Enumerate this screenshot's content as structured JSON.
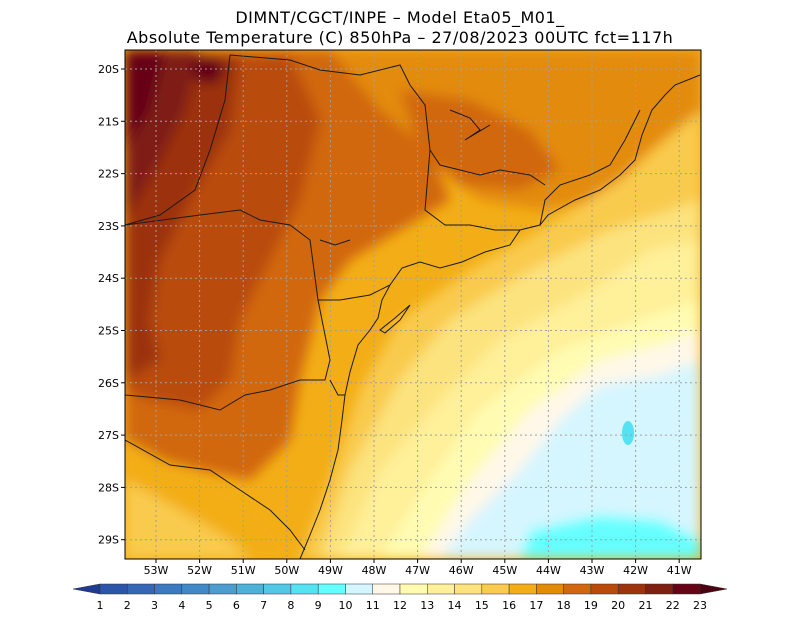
{
  "header": {
    "line1": "DIMNT/CGCT/INPE –  Model Eta05_M01_",
    "line2": "Absolute Temperature (C) 850hPa –  27/08/2023 00UTC fct=117h"
  },
  "axes": {
    "lat_labels": [
      "20S",
      "21S",
      "22S",
      "23S",
      "24S",
      "25S",
      "26S",
      "27S",
      "28S",
      "29S"
    ],
    "lon_labels": [
      "53W",
      "52W",
      "51W",
      "50W",
      "49W",
      "48W",
      "47W",
      "46W",
      "45W",
      "44W",
      "43W",
      "42W",
      "41W"
    ]
  },
  "colorbar": {
    "labels": [
      "1",
      "2",
      "3",
      "4",
      "5",
      "6",
      "7",
      "8",
      "9",
      "10",
      "11",
      "12",
      "13",
      "14",
      "15",
      "16",
      "17",
      "18",
      "19",
      "20",
      "21",
      "22",
      "23"
    ],
    "colors": [
      "#1f3a93",
      "#2a55a8",
      "#3567b5",
      "#3c79c0",
      "#4189c6",
      "#4b9ccf",
      "#4eb1d8",
      "#52c8e6",
      "#55e2f3",
      "#66ffff",
      "#d6f6ff",
      "#fff8e8",
      "#fffcb2",
      "#fff09a",
      "#fce37e",
      "#f9cb4e",
      "#f3ae17",
      "#e38b07",
      "#d16810",
      "#b94b0a",
      "#9c330d",
      "#7f1f12",
      "#660314",
      "#4d0010"
    ]
  }
}
